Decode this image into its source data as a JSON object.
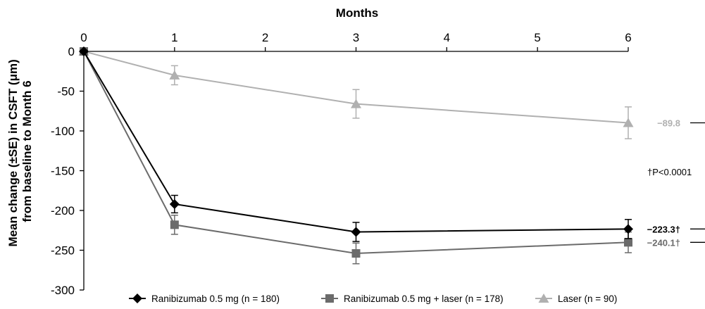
{
  "chart_data": {
    "type": "line",
    "xlabel": "Months",
    "ylabel_lines": [
      "Mean change (±SE) in CSFT (μm)",
      "from baseline to Month 6"
    ],
    "x": [
      0,
      1,
      3,
      6
    ],
    "xlim": [
      0,
      6
    ],
    "x_ticks": [
      "0",
      "1",
      "2",
      "3",
      "4",
      "5",
      "6"
    ],
    "ylim": [
      -300,
      0
    ],
    "y_ticks": [
      "0",
      "-50",
      "-100",
      "-150",
      "-200",
      "-250",
      "-300"
    ],
    "x_axis_position": "top",
    "grid": false,
    "legend_position": "bottom",
    "series": [
      {
        "name": "Ranibizumab 0.5 mg (n = 180)",
        "color": "#000000",
        "marker": "diamond",
        "values": [
          0,
          -192,
          -227,
          -223.3
        ],
        "se": [
          0,
          11,
          12,
          12
        ],
        "end_label": "−223.3†"
      },
      {
        "name": "Ranibizumab 0.5 mg + laser (n = 178)",
        "color": "#6b6b6b",
        "marker": "square",
        "values": [
          0,
          -218,
          -254,
          -240.1
        ],
        "se": [
          0,
          12,
          13,
          13
        ],
        "end_label": "−240.1†"
      },
      {
        "name": "Laser (n = 90)",
        "color": "#b0b0b0",
        "marker": "triangle",
        "values": [
          0,
          -30,
          -66,
          -89.8
        ],
        "se": [
          0,
          12,
          18,
          20
        ],
        "end_label": "−89.8"
      }
    ],
    "annotation": "†P<0.0001"
  }
}
